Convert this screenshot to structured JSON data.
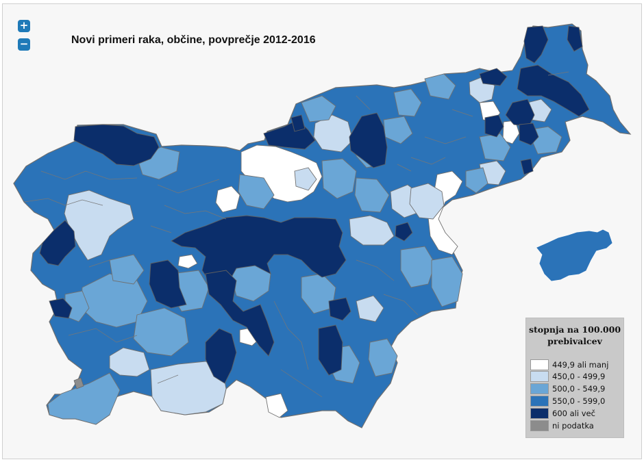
{
  "title": "Novi primeri raka, občine, povprečje 2012-2016",
  "zoom": {
    "in_label": "+",
    "out_label": "−"
  },
  "legend": {
    "title_line1": "stopnja na 100.000",
    "title_line2": "prebivalcev",
    "items": [
      {
        "label": "449,9 ali manj",
        "color": "#ffffff"
      },
      {
        "label": "450,0 - 499,9",
        "color": "#c8dcf0"
      },
      {
        "label": "500,0 - 549,9",
        "color": "#6aa6d6"
      },
      {
        "label": "550,0 - 599,0",
        "color": "#2b73b8"
      },
      {
        "label": "600 ali več",
        "color": "#0b2e6b"
      },
      {
        "label": "ni podatka",
        "color": "#8c8c8c"
      }
    ]
  }
}
